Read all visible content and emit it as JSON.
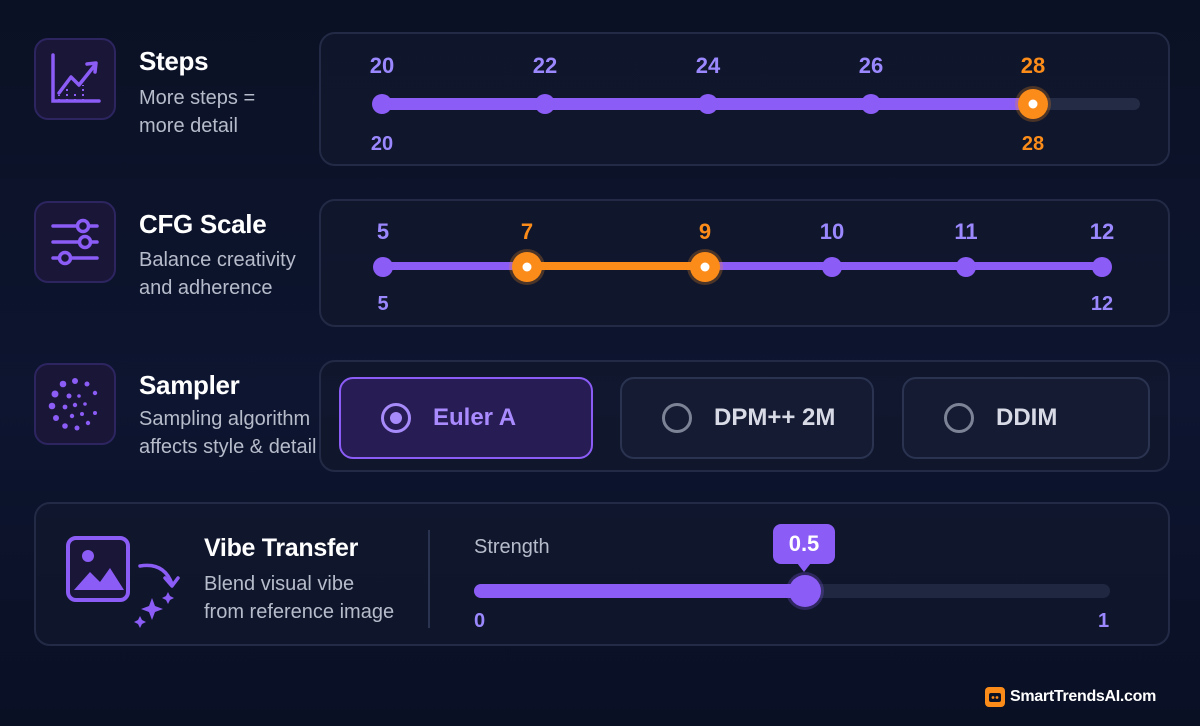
{
  "colors": {
    "accent": "#8b5cf6",
    "highlight": "#fb8c1a",
    "background": "#0b1124"
  },
  "steps": {
    "icon": "chart-trend-icon",
    "title": "Steps",
    "description_line1": "More steps =",
    "description_line2": "more detail",
    "ticks": [
      "20",
      "22",
      "24",
      "26",
      "28"
    ],
    "min_label": "20",
    "selected_label": "28",
    "min": 20,
    "max": 30,
    "value": 28
  },
  "cfg": {
    "icon": "sliders-icon",
    "title": "CFG Scale",
    "description_line1": "Balance creativity",
    "description_line2": "and adherence",
    "ticks": [
      "5",
      "7",
      "9",
      "10",
      "11",
      "12"
    ],
    "min_label": "5",
    "max_label": "12",
    "range_start": 7,
    "range_end": 9
  },
  "sampler": {
    "icon": "dotted-spiral-icon",
    "title": "Sampler",
    "description_line1": "Sampling algorithm",
    "description_line2": "affects style & detail",
    "options": [
      "Euler A",
      "DPM++ 2M",
      "DDIM"
    ],
    "selected": "Euler A"
  },
  "vibe": {
    "icon": "image-transfer-icon",
    "title": "Vibe Transfer",
    "description_line1": "Blend visual vibe",
    "description_line2": "from reference image",
    "strength_label": "Strength",
    "value_label": "0.5",
    "min_label": "0",
    "max_label": "1",
    "value": 0.5
  },
  "brand": {
    "name": "SmartTrendsAI.com",
    "icon": "brand-logo-icon"
  }
}
